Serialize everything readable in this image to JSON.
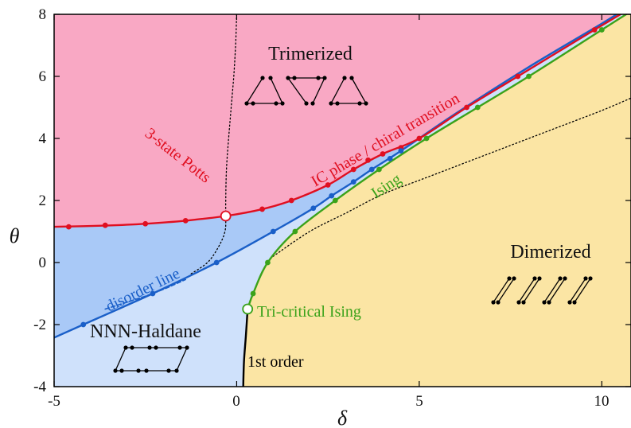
{
  "chart_data": {
    "type": "phase-diagram",
    "xlabel": "δ",
    "ylabel": "θ",
    "xlim": [
      -5,
      10.8
    ],
    "ylim": [
      -4,
      8
    ],
    "xticks": [
      "-5",
      "0",
      "5",
      "10"
    ],
    "yticks": [
      "-4",
      "-2",
      "0",
      "2",
      "4",
      "6",
      "8"
    ],
    "colors": {
      "trimerized": "#f9a8c4",
      "dimerized": "#fbe5a4",
      "nnn_haldane": "#cfe1fb",
      "intermediate": "#a9c9f7",
      "red": "#e00f20",
      "blue": "#1a5fc8",
      "green": "#3aa21a",
      "black": "#000000"
    },
    "regions": [
      {
        "name": "Trimerized",
        "label": "Trimerized"
      },
      {
        "name": "Dimerized",
        "label": "Dimerized"
      },
      {
        "name": "NNN-Haldane",
        "label": "NNN-Haldane"
      }
    ],
    "annotations": {
      "potts": "3-state Potts",
      "ic": "IC phase / chiral transition",
      "ising": "Ising",
      "tci": "Tri-critical Ising",
      "first_order": "1st order",
      "disorder": "disorder line"
    },
    "series": [
      {
        "name": "IC phase / chiral transition",
        "color": "red",
        "points": [
          [
            -4.6,
            1.15
          ],
          [
            -3.6,
            1.2
          ],
          [
            -2.5,
            1.25
          ],
          [
            -1.4,
            1.35
          ],
          [
            -0.3,
            1.5
          ],
          [
            0.7,
            1.72
          ],
          [
            1.5,
            2.0
          ],
          [
            2.5,
            2.5
          ],
          [
            3.2,
            3.0
          ],
          [
            3.6,
            3.3
          ],
          [
            4.0,
            3.5
          ],
          [
            4.5,
            3.7
          ],
          [
            5.0,
            4.0
          ],
          [
            6.3,
            5.0
          ],
          [
            7.7,
            6.0
          ],
          [
            9.8,
            7.5
          ]
        ],
        "curve": [
          [
            -5,
            1.15
          ],
          [
            -3.6,
            1.19
          ],
          [
            -2.5,
            1.25
          ],
          [
            -1.4,
            1.35
          ],
          [
            -0.3,
            1.5
          ],
          [
            0.7,
            1.72
          ],
          [
            1.5,
            2.0
          ],
          [
            2.5,
            2.5
          ],
          [
            3.2,
            3.0
          ],
          [
            4.0,
            3.5
          ],
          [
            5.0,
            4.0
          ],
          [
            6.3,
            5.0
          ],
          [
            7.7,
            6.0
          ],
          [
            9.8,
            7.5
          ],
          [
            10.8,
            8.2
          ]
        ]
      },
      {
        "name": "blue transition",
        "color": "blue",
        "points": [
          [
            -4.2,
            -2.0
          ],
          [
            -2.3,
            -1.0
          ],
          [
            -0.55,
            0.0
          ],
          [
            1.0,
            1.0
          ],
          [
            2.1,
            1.75
          ],
          [
            2.6,
            2.15
          ],
          [
            3.2,
            2.6
          ],
          [
            3.7,
            3.0
          ],
          [
            4.2,
            3.35
          ],
          [
            4.5,
            3.6
          ]
        ],
        "curve": [
          [
            -5,
            -2.42
          ],
          [
            -4.2,
            -2.0
          ],
          [
            -2.3,
            -1.0
          ],
          [
            -0.55,
            0.0
          ],
          [
            1.0,
            1.0
          ],
          [
            2.1,
            1.75
          ],
          [
            2.6,
            2.15
          ],
          [
            3.2,
            2.6
          ],
          [
            3.7,
            3.0
          ],
          [
            4.5,
            3.6
          ],
          [
            6.0,
            4.8
          ],
          [
            8.0,
            6.3
          ],
          [
            10.0,
            7.7
          ],
          [
            10.8,
            8.3
          ]
        ]
      },
      {
        "name": "Ising",
        "color": "green",
        "points": [
          [
            0.45,
            -1.0
          ],
          [
            0.85,
            0.0
          ],
          [
            1.6,
            1.0
          ],
          [
            2.7,
            2.0
          ],
          [
            3.9,
            3.0
          ],
          [
            5.2,
            4.0
          ],
          [
            6.6,
            5.0
          ],
          [
            8.0,
            6.0
          ],
          [
            10.0,
            7.5
          ]
        ],
        "curve": [
          [
            0.3,
            -1.5
          ],
          [
            0.45,
            -1.0
          ],
          [
            0.85,
            0.0
          ],
          [
            1.6,
            1.0
          ],
          [
            2.7,
            2.0
          ],
          [
            3.9,
            3.0
          ],
          [
            5.2,
            4.0
          ],
          [
            6.6,
            5.0
          ],
          [
            8.0,
            6.0
          ],
          [
            10.0,
            7.5
          ],
          [
            10.8,
            8.1
          ]
        ]
      },
      {
        "name": "1st order",
        "color": "black",
        "curve": [
          [
            0.3,
            -1.5
          ],
          [
            0.25,
            -2.4
          ],
          [
            0.2,
            -3.2
          ],
          [
            0.18,
            -4.0
          ]
        ]
      },
      {
        "name": "disorder line",
        "color": "blue",
        "dashed": true,
        "curve": [
          [
            -3.6,
            -1.5
          ],
          [
            -2.3,
            -1.0
          ],
          [
            -1.4,
            -0.55
          ]
        ]
      },
      {
        "name": "dotted-potts",
        "color": "black",
        "dotted": true,
        "curve": [
          [
            0.0,
            8.0
          ],
          [
            -0.03,
            7.0
          ],
          [
            -0.08,
            6.0
          ],
          [
            -0.15,
            5.0
          ],
          [
            -0.22,
            4.0
          ],
          [
            -0.28,
            3.0
          ],
          [
            -0.3,
            2.0
          ],
          [
            -0.3,
            1.5
          ],
          [
            -0.32,
            1.0
          ],
          [
            -0.5,
            0.5
          ],
          [
            -0.8,
            0.0
          ],
          [
            -1.3,
            -0.4
          ]
        ]
      },
      {
        "name": "dotted-dimerized",
        "color": "black",
        "dotted": true,
        "curve": [
          [
            1.0,
            0.2
          ],
          [
            2.0,
            1.0
          ],
          [
            3.0,
            1.6
          ],
          [
            4.0,
            2.2
          ],
          [
            5.0,
            2.65
          ],
          [
            6.0,
            3.1
          ],
          [
            7.0,
            3.55
          ],
          [
            8.0,
            4.0
          ],
          [
            9.0,
            4.45
          ],
          [
            10.0,
            4.9
          ],
          [
            10.8,
            5.3
          ]
        ]
      }
    ],
    "special_points": [
      {
        "name": "3-state Potts point",
        "x": -0.3,
        "y": 1.5
      },
      {
        "name": "Tri-critical Ising point",
        "x": 0.3,
        "y": -1.5
      }
    ]
  }
}
